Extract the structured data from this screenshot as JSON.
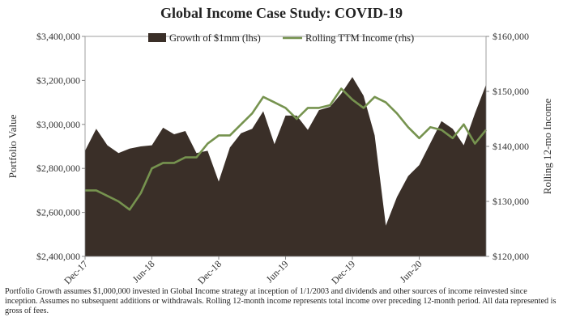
{
  "chart_data": {
    "type": "area+line",
    "title": "Global Income Case Study: COVID-19",
    "ylabel_left": "Portfolio Value",
    "ylabel_right": "Rolling 12-mo Income",
    "ylim_left": [
      2400000,
      3400000
    ],
    "ylim_right": [
      120000,
      160000
    ],
    "yticks_left": [
      "$2,400,000",
      "$2,600,000",
      "$2,800,000",
      "$3,000,000",
      "$3,200,000",
      "$3,400,000"
    ],
    "yticks_right": [
      "$120,000",
      "$130,000",
      "$140,000",
      "$150,000",
      "$160,000"
    ],
    "x_tick_labels": [
      "Dec-17",
      "Jun-18",
      "Dec-18",
      "Jun-19",
      "Dec-19",
      "Jun-20"
    ],
    "grid": false,
    "legend_position": "top",
    "x": [
      "Dec-17",
      "Jan-18",
      "Feb-18",
      "Mar-18",
      "Apr-18",
      "May-18",
      "Jun-18",
      "Jul-18",
      "Aug-18",
      "Sep-18",
      "Oct-18",
      "Nov-18",
      "Dec-18",
      "Jan-19",
      "Feb-19",
      "Mar-19",
      "Apr-19",
      "May-19",
      "Jun-19",
      "Jul-19",
      "Aug-19",
      "Sep-19",
      "Oct-19",
      "Nov-19",
      "Dec-19",
      "Jan-20",
      "Feb-20",
      "Mar-20",
      "Apr-20",
      "May-20",
      "Jun-20",
      "Jul-20",
      "Aug-20",
      "Sep-20",
      "Oct-20",
      "Nov-20",
      "Dec-20"
    ],
    "series": [
      {
        "name": "Growth of $1mm (lhs)",
        "kind": "area",
        "axis": "left",
        "color": "#3a2f28",
        "values": [
          2880000,
          2980000,
          2905000,
          2870000,
          2890000,
          2900000,
          2905000,
          2985000,
          2955000,
          2970000,
          2870000,
          2880000,
          2740000,
          2895000,
          2960000,
          2980000,
          3060000,
          2910000,
          3040000,
          3040000,
          2975000,
          3065000,
          3080000,
          3140000,
          3215000,
          3130000,
          2950000,
          2540000,
          2670000,
          2765000,
          2815000,
          2915000,
          3015000,
          2980000,
          2905000,
          3050000,
          3180000
        ]
      },
      {
        "name": "Rolling TTM Income (rhs)",
        "kind": "line",
        "axis": "right",
        "color": "#76934f",
        "values": [
          132000,
          132000,
          131000,
          130000,
          128500,
          131500,
          136000,
          137000,
          137000,
          138000,
          138000,
          140500,
          142000,
          142000,
          144000,
          146000,
          149000,
          148000,
          147000,
          145000,
          147000,
          147000,
          147500,
          150500,
          148500,
          147000,
          149000,
          148000,
          146000,
          143500,
          141500,
          143500,
          143000,
          141500,
          144000,
          140500,
          143000
        ]
      }
    ]
  },
  "footnote": "Portfolio Growth assumes $1,000,000 invested in Global Income strategy at inception of 1/1/2003 and dividends and other sources of income reinvested since inception.  Assumes no subsequent additions or withdrawals.  Rolling 12-month income represents total income over preceding 12-month period.  All data represented is gross of fees."
}
